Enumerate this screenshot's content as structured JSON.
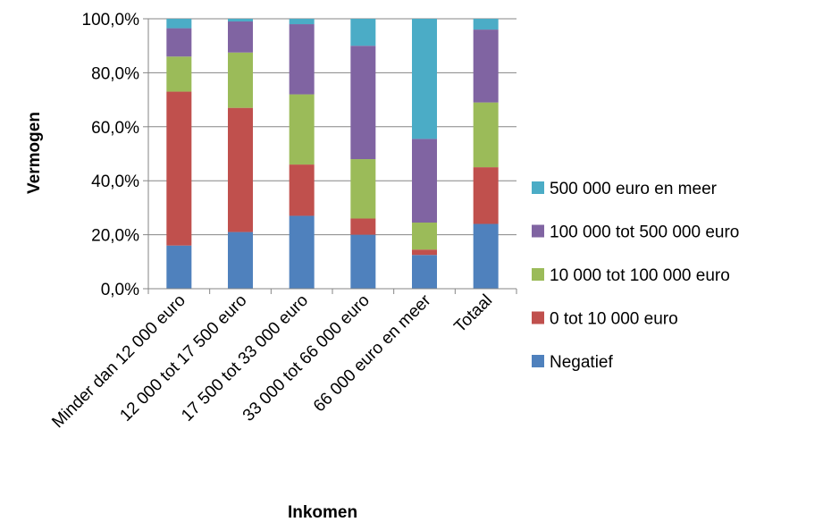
{
  "chart_data": {
    "type": "bar",
    "stacked": true,
    "percent": true,
    "categories": [
      "Minder dan 12 000 euro",
      "12 000 tot 17 500 euro",
      "17 500 tot 33 000 euro",
      "33 000 tot 66 000 euro",
      "66 000 euro en meer",
      "Totaal"
    ],
    "series": [
      {
        "name": "Negatief",
        "color": "#4F81BD",
        "values": [
          16,
          21,
          27,
          20,
          12.5,
          24
        ]
      },
      {
        "name": "0 tot 10 000 euro",
        "color": "#C0504D",
        "values": [
          57,
          46,
          19,
          6,
          2,
          21
        ]
      },
      {
        "name": "10 000 tot 100 000 euro",
        "color": "#9BBB59",
        "values": [
          13,
          20.5,
          26,
          22,
          10,
          24
        ]
      },
      {
        "name": "100 000 tot 500 000 euro",
        "color": "#8064A2",
        "values": [
          10.5,
          11.5,
          26,
          42,
          31,
          27
        ]
      },
      {
        "name": "500 000 euro en meer",
        "color": "#4BACC6",
        "values": [
          3.5,
          1,
          2,
          10,
          44.5,
          4
        ]
      }
    ],
    "xlabel": "Inkomen",
    "ylabel": "Vermogen",
    "ylim": [
      0,
      100
    ],
    "yticks": [
      "0,0%",
      "20,0%",
      "40,0%",
      "60,0%",
      "80,0%",
      "100,0%"
    ],
    "grid": true,
    "legend_position": "right"
  }
}
